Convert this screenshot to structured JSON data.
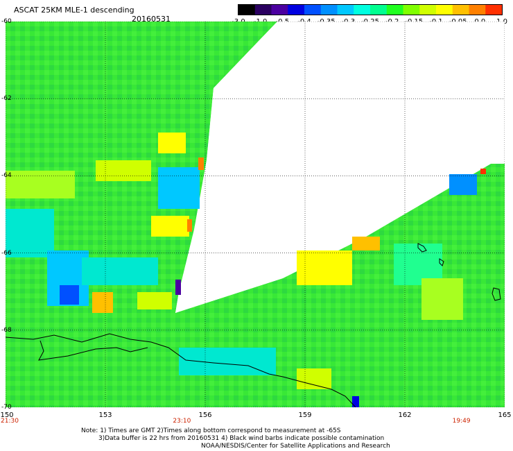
{
  "title": "ASCAT 25KM MLE-1 descending",
  "date": "20160531",
  "colorbar": {
    "ticks": [
      "-3.0",
      "-1.0",
      "-0.5",
      "-0.4",
      "-0.35",
      "-0.3",
      "-0.25",
      "-0.2",
      "-0.15",
      "-0.1",
      "-0.05",
      "0.0",
      "1.0"
    ],
    "colors": [
      "#000000",
      "#2a0060",
      "#4b00a0",
      "#0000e0",
      "#0050ff",
      "#0090ff",
      "#00c8ff",
      "#00ffe0",
      "#00ff90",
      "#20ff20",
      "#80ff00",
      "#d0ff00",
      "#ffff00",
      "#ffc000",
      "#ff8000",
      "#ff3000"
    ]
  },
  "map": {
    "lon_range": [
      150,
      165
    ],
    "lat_range": [
      -60,
      -70
    ],
    "lat_ticks": [
      "-60",
      "-62",
      "-64",
      "-66",
      "-68",
      "-70"
    ],
    "lat_values": [
      -60,
      -62,
      -64,
      -66,
      -68,
      -70
    ],
    "lon_ticks": [
      "150",
      "153",
      "156",
      "159",
      "162",
      "165"
    ],
    "lon_values": [
      150,
      153,
      156,
      159,
      162,
      165
    ]
  },
  "times": [
    {
      "label": "21:30",
      "lon": 150
    },
    {
      "label": "23:10",
      "lon": 155.3
    },
    {
      "label": "19:49",
      "lon": 163.7
    }
  ],
  "notes": [
    "Note: 1) Times are GMT 2)Times along bottom correspond to measurement at -65S",
    "3)Data buffer is 22 hrs from 20160531 4) Black wind barbs indicate possible contamination",
    "NOAA/NESDIS/Center for Satellite Applications and Research"
  ]
}
